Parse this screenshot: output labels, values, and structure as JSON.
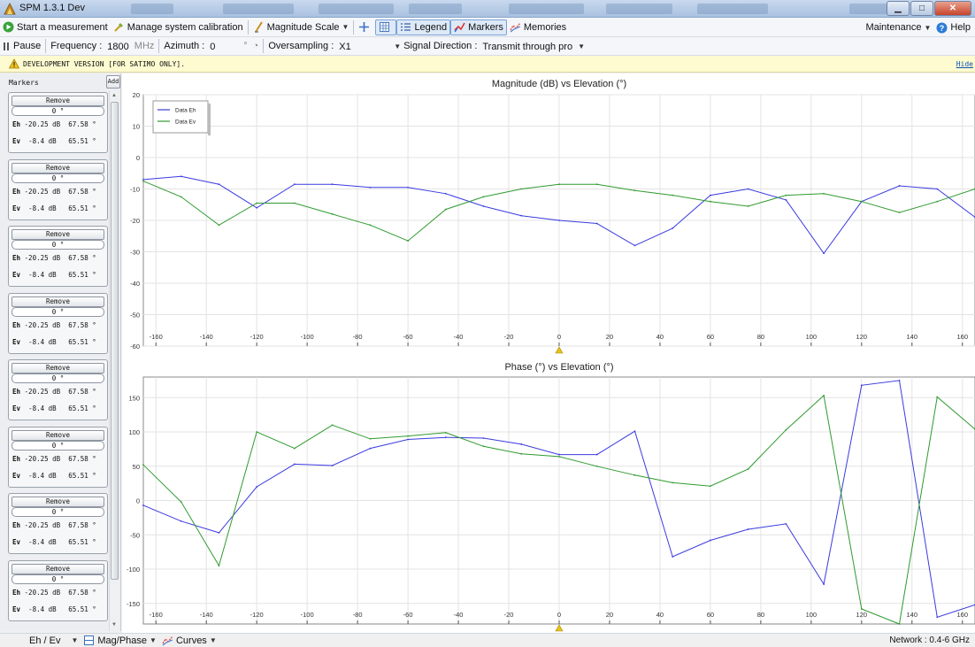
{
  "window": {
    "title": "SPM 1.3.1 Dev"
  },
  "toolbar": {
    "start_measurement": "Start a measurement",
    "manage_calibration": "Manage system calibration",
    "magnitude_scale": "Magnitude Scale",
    "legend": "Legend",
    "markers": "Markers",
    "memories": "Memories",
    "maintenance": "Maintenance",
    "help": "Help"
  },
  "params": {
    "pause": "Pause",
    "frequency_label": "Frequency :",
    "frequency_value": "1800",
    "frequency_unit": "MHz",
    "azimuth_label": "Azimuth :",
    "azimuth_value": "0",
    "azimuth_unit": "°",
    "oversampling_label": "Oversampling :",
    "oversampling_value": "X1",
    "signal_direction_label": "Signal Direction :",
    "signal_direction_value": "Transmit through pro"
  },
  "banner": {
    "text": "DEVELOPMENT VERSION [FOR SATIMO ONLY].",
    "hide": "Hide"
  },
  "markers_panel": {
    "title": "Markers",
    "add": "Add",
    "items": [
      {
        "remove": "Remove",
        "angle": "0 °",
        "eh_label": "Eh",
        "eh_db": "-20.25 dB",
        "eh_deg": "67.58 °",
        "ev_label": "Ev",
        "ev_db": "-8.4 dB",
        "ev_deg": "65.51 °"
      },
      {
        "remove": "Remove",
        "angle": "0 °",
        "eh_label": "Eh",
        "eh_db": "-20.25 dB",
        "eh_deg": "67.58 °",
        "ev_label": "Ev",
        "ev_db": "-8.4 dB",
        "ev_deg": "65.51 °"
      },
      {
        "remove": "Remove",
        "angle": "0 °",
        "eh_label": "Eh",
        "eh_db": "-20.25 dB",
        "eh_deg": "67.58 °",
        "ev_label": "Ev",
        "ev_db": "-8.4 dB",
        "ev_deg": "65.51 °"
      },
      {
        "remove": "Remove",
        "angle": "0 °",
        "eh_label": "Eh",
        "eh_db": "-20.25 dB",
        "eh_deg": "67.58 °",
        "ev_label": "Ev",
        "ev_db": "-8.4 dB",
        "ev_deg": "65.51 °"
      },
      {
        "remove": "Remove",
        "angle": "0 °",
        "eh_label": "Eh",
        "eh_db": "-20.25 dB",
        "eh_deg": "67.58 °",
        "ev_label": "Ev",
        "ev_db": "-8.4 dB",
        "ev_deg": "65.51 °"
      },
      {
        "remove": "Remove",
        "angle": "0 °",
        "eh_label": "Eh",
        "eh_db": "-20.25 dB",
        "eh_deg": "67.58 °",
        "ev_label": "Ev",
        "ev_db": "-8.4 dB",
        "ev_deg": "65.51 °"
      },
      {
        "remove": "Remove",
        "angle": "0 °",
        "eh_label": "Eh",
        "eh_db": "-20.25 dB",
        "eh_deg": "67.58 °",
        "ev_label": "Ev",
        "ev_db": "-8.4 dB",
        "ev_deg": "65.51 °"
      },
      {
        "remove": "Remove",
        "angle": "0 °",
        "eh_label": "Eh",
        "eh_db": "-20.25 dB",
        "eh_deg": "67.58 °",
        "ev_label": "Ev",
        "ev_db": "-8.4 dB",
        "ev_deg": "65.51 °"
      }
    ]
  },
  "statusbar": {
    "view": "Eh / Ev",
    "mag_phase": "Mag/Phase",
    "curves": "Curves",
    "network": "Network : 0.4-6 GHz"
  },
  "colors": {
    "eh": "#3a3ae0",
    "ev": "#2f9a2f",
    "marker": "#e8c21a"
  },
  "icons": [
    "app-icon",
    "play-icon",
    "calibration-icon",
    "magnitude-scale-icon",
    "crosshair-icon",
    "grid-icon",
    "legend-icon",
    "markers-icon",
    "memories-icon",
    "help-icon",
    "pause-icon",
    "warning-icon",
    "mag-phase-icon",
    "curves-icon"
  ],
  "chart_data": [
    {
      "type": "line",
      "title": "Magnitude (dB) vs Elevation (°)",
      "xlim": [
        -165,
        165
      ],
      "ylim": [
        -60,
        20
      ],
      "xticks": [
        -160,
        -140,
        -120,
        -100,
        -80,
        -60,
        -40,
        -20,
        0,
        20,
        40,
        60,
        80,
        100,
        120,
        140,
        160
      ],
      "yticks": [
        20,
        10,
        0,
        -10,
        -20,
        -30,
        -40,
        -50,
        -60
      ],
      "grid": true,
      "legend": "top-left",
      "marker_x": 0,
      "series": [
        {
          "name": "Data Eh",
          "color": "#3a3ae0",
          "x": [
            -165,
            -150,
            -135,
            -120,
            -105,
            -90,
            -75,
            -60,
            -45,
            -30,
            -15,
            0,
            15,
            30,
            45,
            60,
            75,
            90,
            105,
            120,
            135,
            150,
            165
          ],
          "y": [
            -7,
            -6,
            -8.5,
            -16,
            -8.5,
            -8.5,
            -9.5,
            -9.5,
            -11.5,
            -15.5,
            -18.5,
            -20,
            -21,
            -28,
            -22.5,
            -12,
            -10,
            -13.5,
            -30.5,
            -14,
            -9,
            -10,
            -19
          ]
        },
        {
          "name": "Data Ev",
          "color": "#2f9a2f",
          "x": [
            -165,
            -150,
            -135,
            -120,
            -105,
            -90,
            -75,
            -60,
            -45,
            -30,
            -15,
            0,
            15,
            30,
            45,
            60,
            75,
            90,
            105,
            120,
            135,
            150,
            165
          ],
          "y": [
            -7.5,
            -12.5,
            -21.5,
            -14.5,
            -14.5,
            -18,
            -21.5,
            -26.5,
            -16.5,
            -12.5,
            -10,
            -8.5,
            -8.5,
            -10.5,
            -12,
            -14,
            -15.5,
            -12,
            -11.5,
            -14,
            -17.5,
            -14,
            -10
          ]
        }
      ]
    },
    {
      "type": "line",
      "title": "Phase (°) vs Elevation (°)",
      "xlim": [
        -165,
        165
      ],
      "ylim": [
        -180,
        180
      ],
      "xticks": [
        -160,
        -140,
        -120,
        -100,
        -80,
        -60,
        -40,
        -20,
        0,
        20,
        40,
        60,
        80,
        100,
        120,
        140,
        160
      ],
      "yticks": [
        150,
        100,
        50,
        0,
        -50,
        -100,
        -150
      ],
      "grid": true,
      "marker_x": 0,
      "series": [
        {
          "name": "Data Eh",
          "color": "#3a3ae0",
          "x": [
            -165,
            -150,
            -135,
            -120,
            -105,
            -90,
            -75,
            -60,
            -45,
            -30,
            -15,
            0,
            15,
            30,
            45,
            60,
            75,
            90,
            105,
            120,
            135,
            150,
            165
          ],
          "y": [
            -7,
            -30,
            -47,
            20,
            53,
            51,
            76,
            89,
            92,
            91,
            82,
            67,
            67,
            101,
            -82,
            -58,
            -42,
            -34,
            -122,
            168,
            175,
            -170,
            -152
          ]
        },
        {
          "name": "Data Ev",
          "color": "#2f9a2f",
          "x": [
            -165,
            -150,
            -135,
            -120,
            -105,
            -90,
            -75,
            -60,
            -45,
            -30,
            -15,
            0,
            15,
            30,
            45,
            60,
            75,
            90,
            105,
            120,
            135,
            150,
            165
          ],
          "y": [
            52,
            -2,
            -95,
            100,
            76,
            110,
            90,
            94,
            99,
            79,
            68,
            64,
            50,
            37,
            26,
            21,
            46,
            103,
            153,
            -158,
            -180,
            151,
            104
          ]
        }
      ]
    }
  ]
}
